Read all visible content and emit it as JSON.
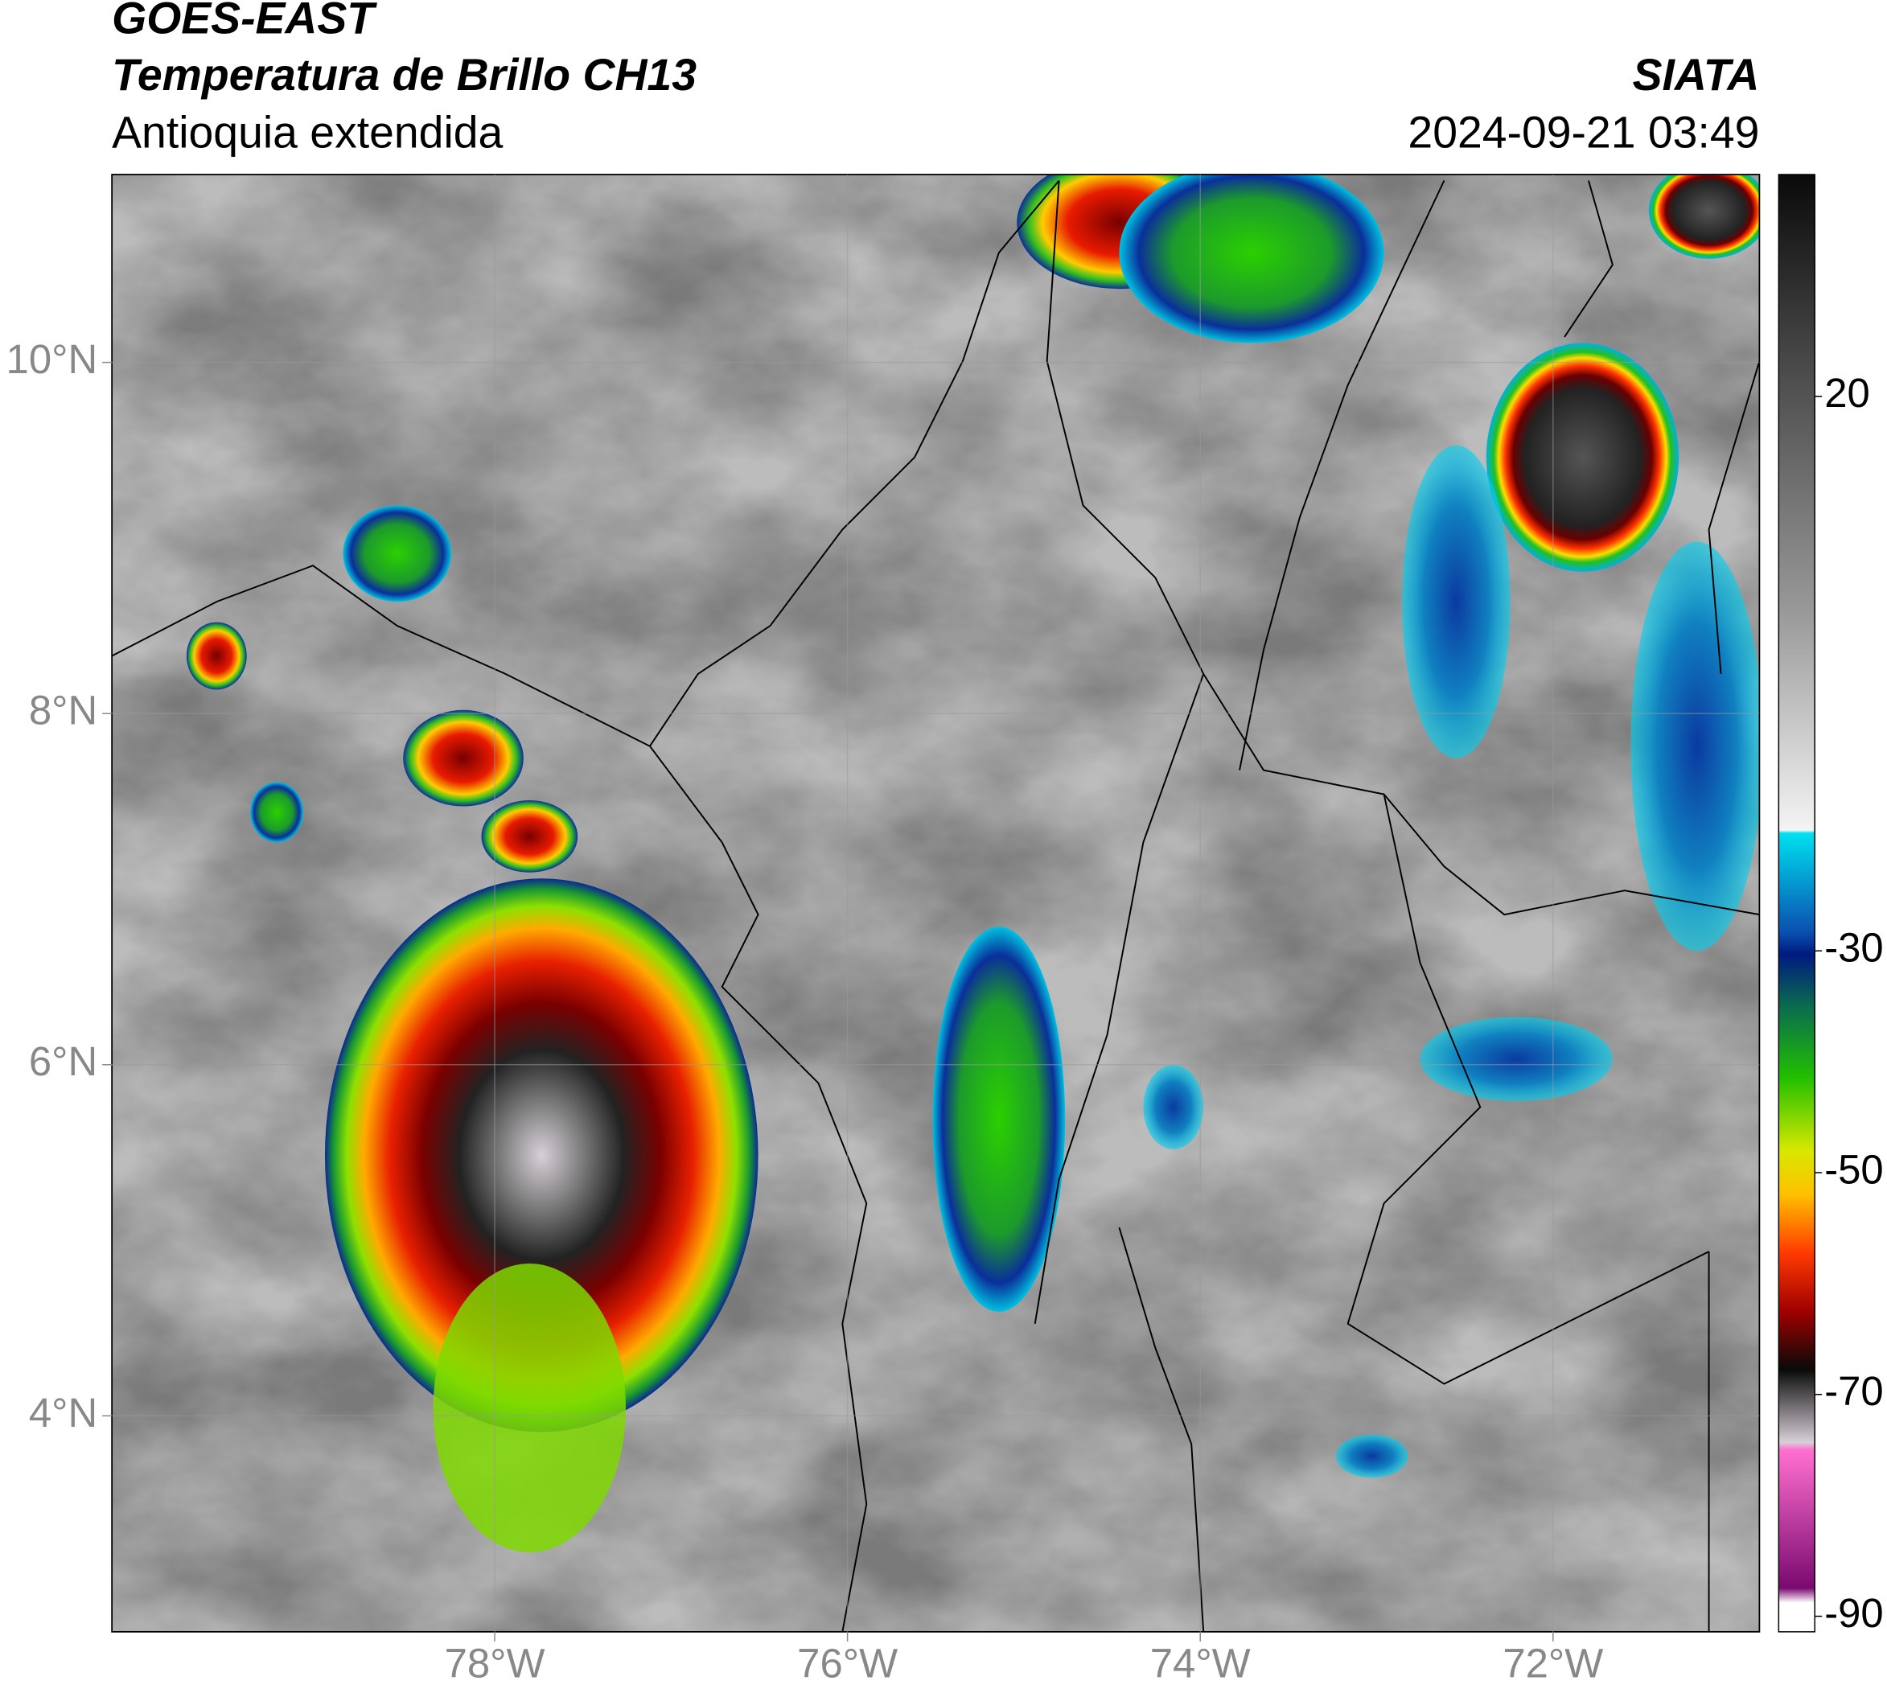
{
  "header": {
    "title": "GOES-EAST",
    "subtitle": "Temperatura de Brillo CH13",
    "region": "Antioquia extendida",
    "source": "SIATA",
    "timestamp": "2024-09-21 03:49"
  },
  "map": {
    "xlim": [
      -80.17,
      -70.83
    ],
    "ylim": [
      2.77,
      11.07
    ],
    "xticks": [
      {
        "value": -78,
        "label": "78°W"
      },
      {
        "value": -76,
        "label": "76°W"
      },
      {
        "value": -74,
        "label": "74°W"
      },
      {
        "value": -72,
        "label": "72°W"
      }
    ],
    "yticks": [
      {
        "value": 10,
        "label": "10°N"
      },
      {
        "value": 8,
        "label": "8°N"
      },
      {
        "value": 6,
        "label": "6°N"
      },
      {
        "value": 4,
        "label": "4°N"
      }
    ],
    "grid": true
  },
  "colorbar": {
    "clim": [
      -91.4,
      40
    ],
    "ticks": [
      20,
      -30,
      -50,
      -70,
      -90
    ]
  }
}
